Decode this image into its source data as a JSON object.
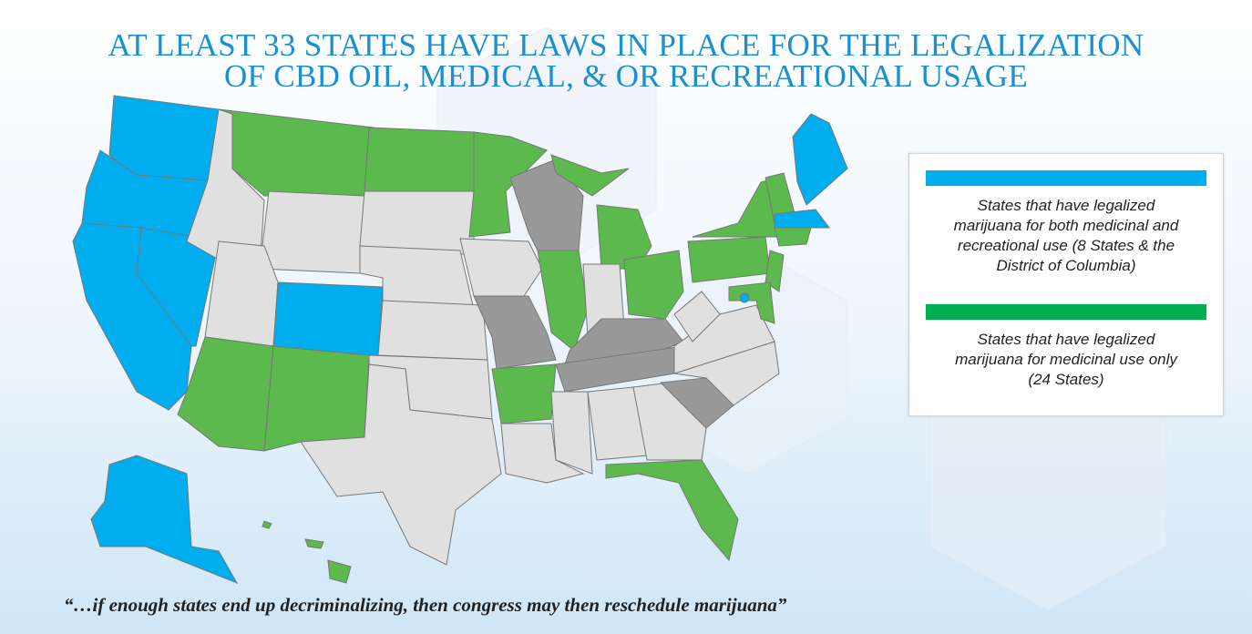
{
  "header": {
    "title_lines": [
      "AT LEAST 33 STATES HAVE LAWS IN PLACE FOR THE LEGALIZATION",
      "OF CBD OIL, MEDICAL, & OR RECREATIONAL USAGE"
    ]
  },
  "legend": [
    {
      "color": "#00aeef",
      "lines": [
        "States that have legalized",
        "marijuana for both medicinal and",
        "recreational use (8 States & the",
        "District of Columbia)"
      ]
    },
    {
      "color": "#00b050",
      "lines": [
        "States that have legalized",
        "marijuana for medicinal use only",
        "(24 States)"
      ]
    }
  ],
  "quote": "“…if enough states end up decriminalizing, then congress may then reschedule marijuana”"
}
